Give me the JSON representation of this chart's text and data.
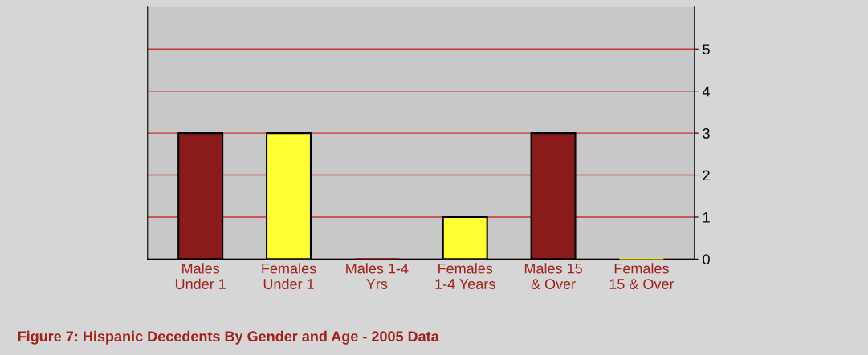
{
  "chart_data": {
    "type": "bar",
    "title": "Figure 7: Hispanic Decedents By Gender and Age - 2005 Data",
    "categories": [
      "Males\nUnder 1",
      "Females\nUnder 1",
      "Males 1-4\nYrs",
      "Females\n1-4 Years",
      "Males 15\n& Over",
      "Females\n15 & Over"
    ],
    "values": [
      3,
      3,
      0,
      1,
      3,
      0
    ],
    "colors": [
      "#8b1a1a",
      "#ffff33",
      "#8b1a1a",
      "#ffff33",
      "#8b1a1a",
      "#ffff33"
    ],
    "ylim": [
      0,
      6
    ],
    "yticks": [
      0,
      1,
      2,
      3,
      4,
      5
    ],
    "grid": "y"
  }
}
